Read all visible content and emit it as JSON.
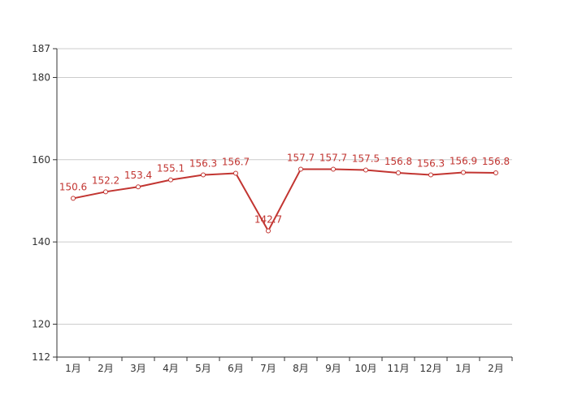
{
  "chart_data": {
    "type": "line",
    "title": "",
    "xlabel": "",
    "ylabel": "",
    "categories": [
      "1月",
      "2月",
      "3月",
      "4月",
      "5月",
      "6月",
      "7月",
      "8月",
      "9月",
      "10月",
      "11月",
      "12月",
      "1月",
      "2月"
    ],
    "series": [
      {
        "values": [
          150.6,
          152.2,
          153.4,
          155.1,
          156.3,
          156.7,
          142.7,
          157.7,
          157.7,
          157.5,
          156.8,
          156.3,
          156.9,
          156.8
        ],
        "color": "#c23531"
      }
    ],
    "ylim": [
      112,
      187
    ],
    "yticks": [
      "187",
      "180",
      "160",
      "140",
      "120",
      "112"
    ],
    "grid": true,
    "legend": "none",
    "data_labels": true
  }
}
